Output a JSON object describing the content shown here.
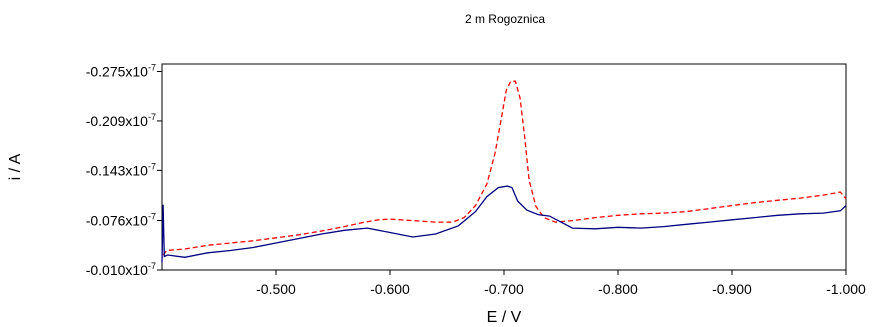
{
  "chart_data": {
    "type": "line",
    "title": "2 m Rogoznica",
    "xlabel": "E / V",
    "ylabel": "i / A",
    "xlim": [
      -0.4,
      -1.0
    ],
    "ylim": [
      -0.01,
      -0.285
    ],
    "x_axis_reversed": true,
    "y_axis_reversed": true,
    "x_ticks": [
      {
        "value": -0.5,
        "label": "-0.500"
      },
      {
        "value": -0.6,
        "label": "-0.600"
      },
      {
        "value": -0.7,
        "label": "-0.700"
      },
      {
        "value": -0.8,
        "label": "-0.800"
      },
      {
        "value": -0.9,
        "label": "-0.900"
      },
      {
        "value": -1.0,
        "label": "-1.000"
      }
    ],
    "y_ticks": [
      {
        "value": -0.275,
        "mantissa": "-0.275x10",
        "exponent": "-7"
      },
      {
        "value": -0.209,
        "mantissa": "-0.209x10",
        "exponent": "-7"
      },
      {
        "value": -0.143,
        "mantissa": "-0.143x10",
        "exponent": "-7"
      },
      {
        "value": -0.076,
        "mantissa": "-0.076x10",
        "exponent": "-7"
      },
      {
        "value": -0.01,
        "mantissa": "-0.010x10",
        "exponent": "-7"
      }
    ],
    "series": [
      {
        "color": "#ff0000",
        "style": "dashed",
        "x": [
          -0.401,
          -0.404,
          -0.42,
          -0.44,
          -0.46,
          -0.48,
          -0.5,
          -0.52,
          -0.54,
          -0.56,
          -0.575,
          -0.59,
          -0.6,
          -0.62,
          -0.64,
          -0.655,
          -0.665,
          -0.675,
          -0.685,
          -0.692,
          -0.698,
          -0.702,
          -0.706,
          -0.71,
          -0.714,
          -0.718,
          -0.722,
          -0.728,
          -0.735,
          -0.745,
          -0.76,
          -0.78,
          -0.8,
          -0.82,
          -0.84,
          -0.86,
          -0.88,
          -0.9,
          -0.92,
          -0.94,
          -0.96,
          -0.98,
          -0.995,
          -1.0
        ],
        "y": [
          -0.03,
          -0.036,
          -0.038,
          -0.043,
          -0.046,
          -0.049,
          -0.053,
          -0.057,
          -0.062,
          -0.068,
          -0.073,
          -0.077,
          -0.078,
          -0.076,
          -0.074,
          -0.074,
          -0.08,
          -0.096,
          -0.125,
          -0.165,
          -0.215,
          -0.25,
          -0.262,
          -0.262,
          -0.24,
          -0.19,
          -0.13,
          -0.095,
          -0.08,
          -0.074,
          -0.076,
          -0.08,
          -0.083,
          -0.085,
          -0.086,
          -0.088,
          -0.092,
          -0.096,
          -0.1,
          -0.103,
          -0.106,
          -0.11,
          -0.114,
          -0.105
        ]
      },
      {
        "color": "#000080",
        "style": "solid",
        "x": [
          -0.4,
          -0.401,
          -0.402,
          -0.405,
          -0.42,
          -0.44,
          -0.46,
          -0.48,
          -0.5,
          -0.52,
          -0.54,
          -0.56,
          -0.58,
          -0.6,
          -0.62,
          -0.64,
          -0.66,
          -0.675,
          -0.685,
          -0.695,
          -0.703,
          -0.707,
          -0.712,
          -0.72,
          -0.73,
          -0.74,
          -0.76,
          -0.78,
          -0.8,
          -0.82,
          -0.84,
          -0.86,
          -0.88,
          -0.9,
          -0.92,
          -0.94,
          -0.96,
          -0.98,
          -0.995,
          -1.0
        ],
        "y": [
          -0.02,
          -0.097,
          -0.028,
          -0.03,
          -0.027,
          -0.033,
          -0.036,
          -0.04,
          -0.046,
          -0.052,
          -0.058,
          -0.063,
          -0.066,
          -0.06,
          -0.054,
          -0.058,
          -0.069,
          -0.088,
          -0.108,
          -0.12,
          -0.122,
          -0.12,
          -0.102,
          -0.09,
          -0.084,
          -0.082,
          -0.066,
          -0.065,
          -0.067,
          -0.066,
          -0.068,
          -0.071,
          -0.074,
          -0.077,
          -0.08,
          -0.083,
          -0.085,
          -0.086,
          -0.089,
          -0.096
        ]
      }
    ]
  }
}
